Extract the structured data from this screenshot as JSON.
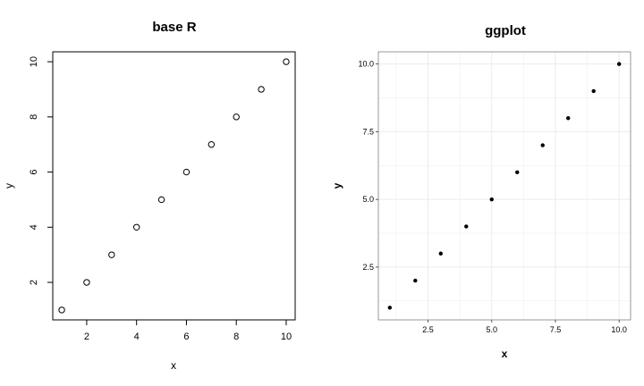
{
  "chart_data": [
    {
      "type": "scatter",
      "title": "base R",
      "xlabel": "x",
      "ylabel": "y",
      "x": [
        1,
        2,
        3,
        4,
        5,
        6,
        7,
        8,
        9,
        10
      ],
      "y": [
        1,
        2,
        3,
        4,
        5,
        6,
        7,
        8,
        9,
        10
      ],
      "xlim": [
        0.64,
        10.36
      ],
      "ylim": [
        0.64,
        10.36
      ],
      "xticks": [
        2,
        4,
        6,
        8,
        10
      ],
      "yticks": [
        2,
        4,
        6,
        8,
        10
      ],
      "xtick_labels": [
        "2",
        "4",
        "6",
        "8",
        "10"
      ],
      "ytick_labels": [
        "2",
        "4",
        "6",
        "8",
        "10"
      ],
      "marker": "open-circle",
      "grid": false
    },
    {
      "type": "scatter",
      "title": "ggplot",
      "xlabel": "x",
      "ylabel": "y",
      "x": [
        1,
        2,
        3,
        4,
        5,
        6,
        7,
        8,
        9,
        10
      ],
      "y": [
        1,
        2,
        3,
        4,
        5,
        6,
        7,
        8,
        9,
        10
      ],
      "xlim": [
        0.55,
        10.45
      ],
      "ylim": [
        0.55,
        10.45
      ],
      "xticks": [
        2.5,
        5.0,
        7.5,
        10.0
      ],
      "yticks": [
        2.5,
        5.0,
        7.5,
        10.0
      ],
      "xtick_labels": [
        "2.5",
        "5.0",
        "7.5",
        "10.0"
      ],
      "ytick_labels": [
        "2.5",
        "5.0",
        "7.5",
        "10.0"
      ],
      "minor_ticks": [
        1.25,
        3.75,
        6.25,
        8.75
      ],
      "marker": "filled-circle",
      "grid": true,
      "grid_color": "#ebebeb"
    }
  ]
}
